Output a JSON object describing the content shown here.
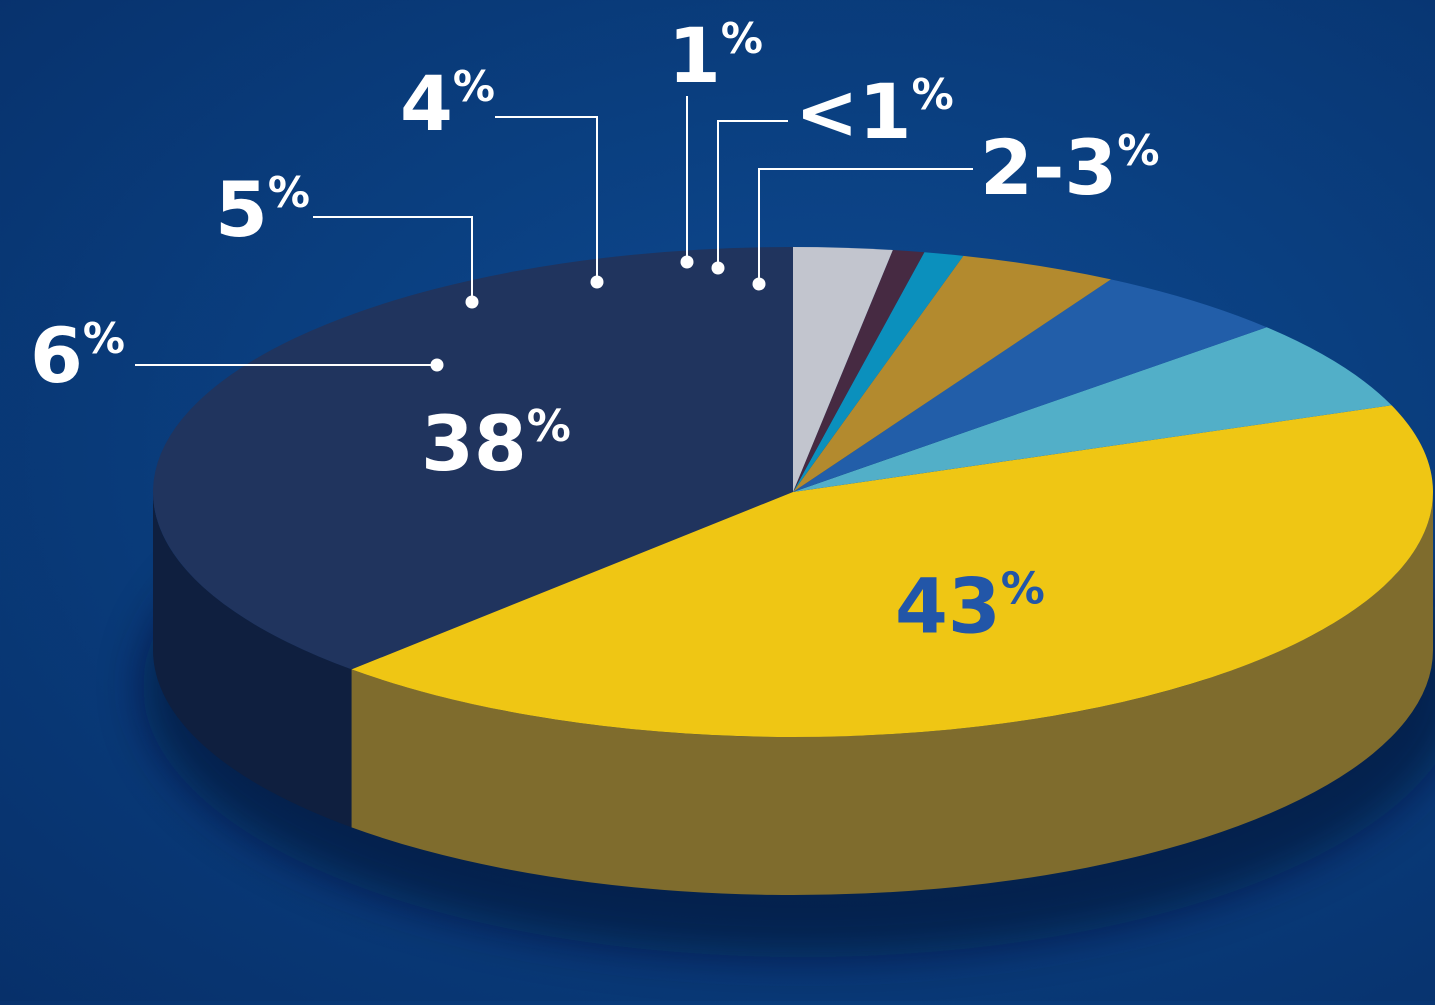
{
  "chart_data": {
    "type": "pie",
    "style": "3d",
    "slices": [
      {
        "label": "38%",
        "num": "38",
        "unit": "%",
        "value": 38,
        "color": "#20345e",
        "side_color": "#0f1f3f",
        "label_placement": "inside",
        "label_color": "#ffffff"
      },
      {
        "label": "43%",
        "num": "43",
        "unit": "%",
        "value": 43,
        "color": "#efc614",
        "side_color": "#7f6c2d",
        "label_placement": "inside",
        "label_color": "#2256a8"
      },
      {
        "label": "6%",
        "num": "6",
        "unit": "%",
        "value": 6,
        "color": "#52afc8",
        "side_color": "#357a8c",
        "label_placement": "callout",
        "label_color": "#ffffff"
      },
      {
        "label": "5%",
        "num": "5",
        "unit": "%",
        "value": 5,
        "color": "#225ea9",
        "side_color": "#173f72",
        "label_placement": "callout",
        "label_color": "#ffffff"
      },
      {
        "label": "4%",
        "num": "4",
        "unit": "%",
        "value": 4,
        "color": "#b38a2e",
        "side_color": "#6e5620",
        "label_placement": "callout",
        "label_color": "#ffffff"
      },
      {
        "label": "1%",
        "num": "1",
        "unit": "%",
        "value": 1,
        "color": "#0b90bd",
        "side_color": "#075d7a",
        "label_placement": "callout",
        "label_color": "#ffffff"
      },
      {
        "label": "<1%",
        "num": "<1",
        "unit": "%",
        "value": 0.8,
        "color": "#462a42",
        "side_color": "#2a1a29",
        "label_placement": "callout",
        "label_color": "#ffffff"
      },
      {
        "label": "2-3%",
        "num": "2-3",
        "unit": "%",
        "value": 2.5,
        "color": "#c2c5ce",
        "side_color": "#8b8e96",
        "label_placement": "callout",
        "label_color": "#ffffff"
      }
    ]
  }
}
